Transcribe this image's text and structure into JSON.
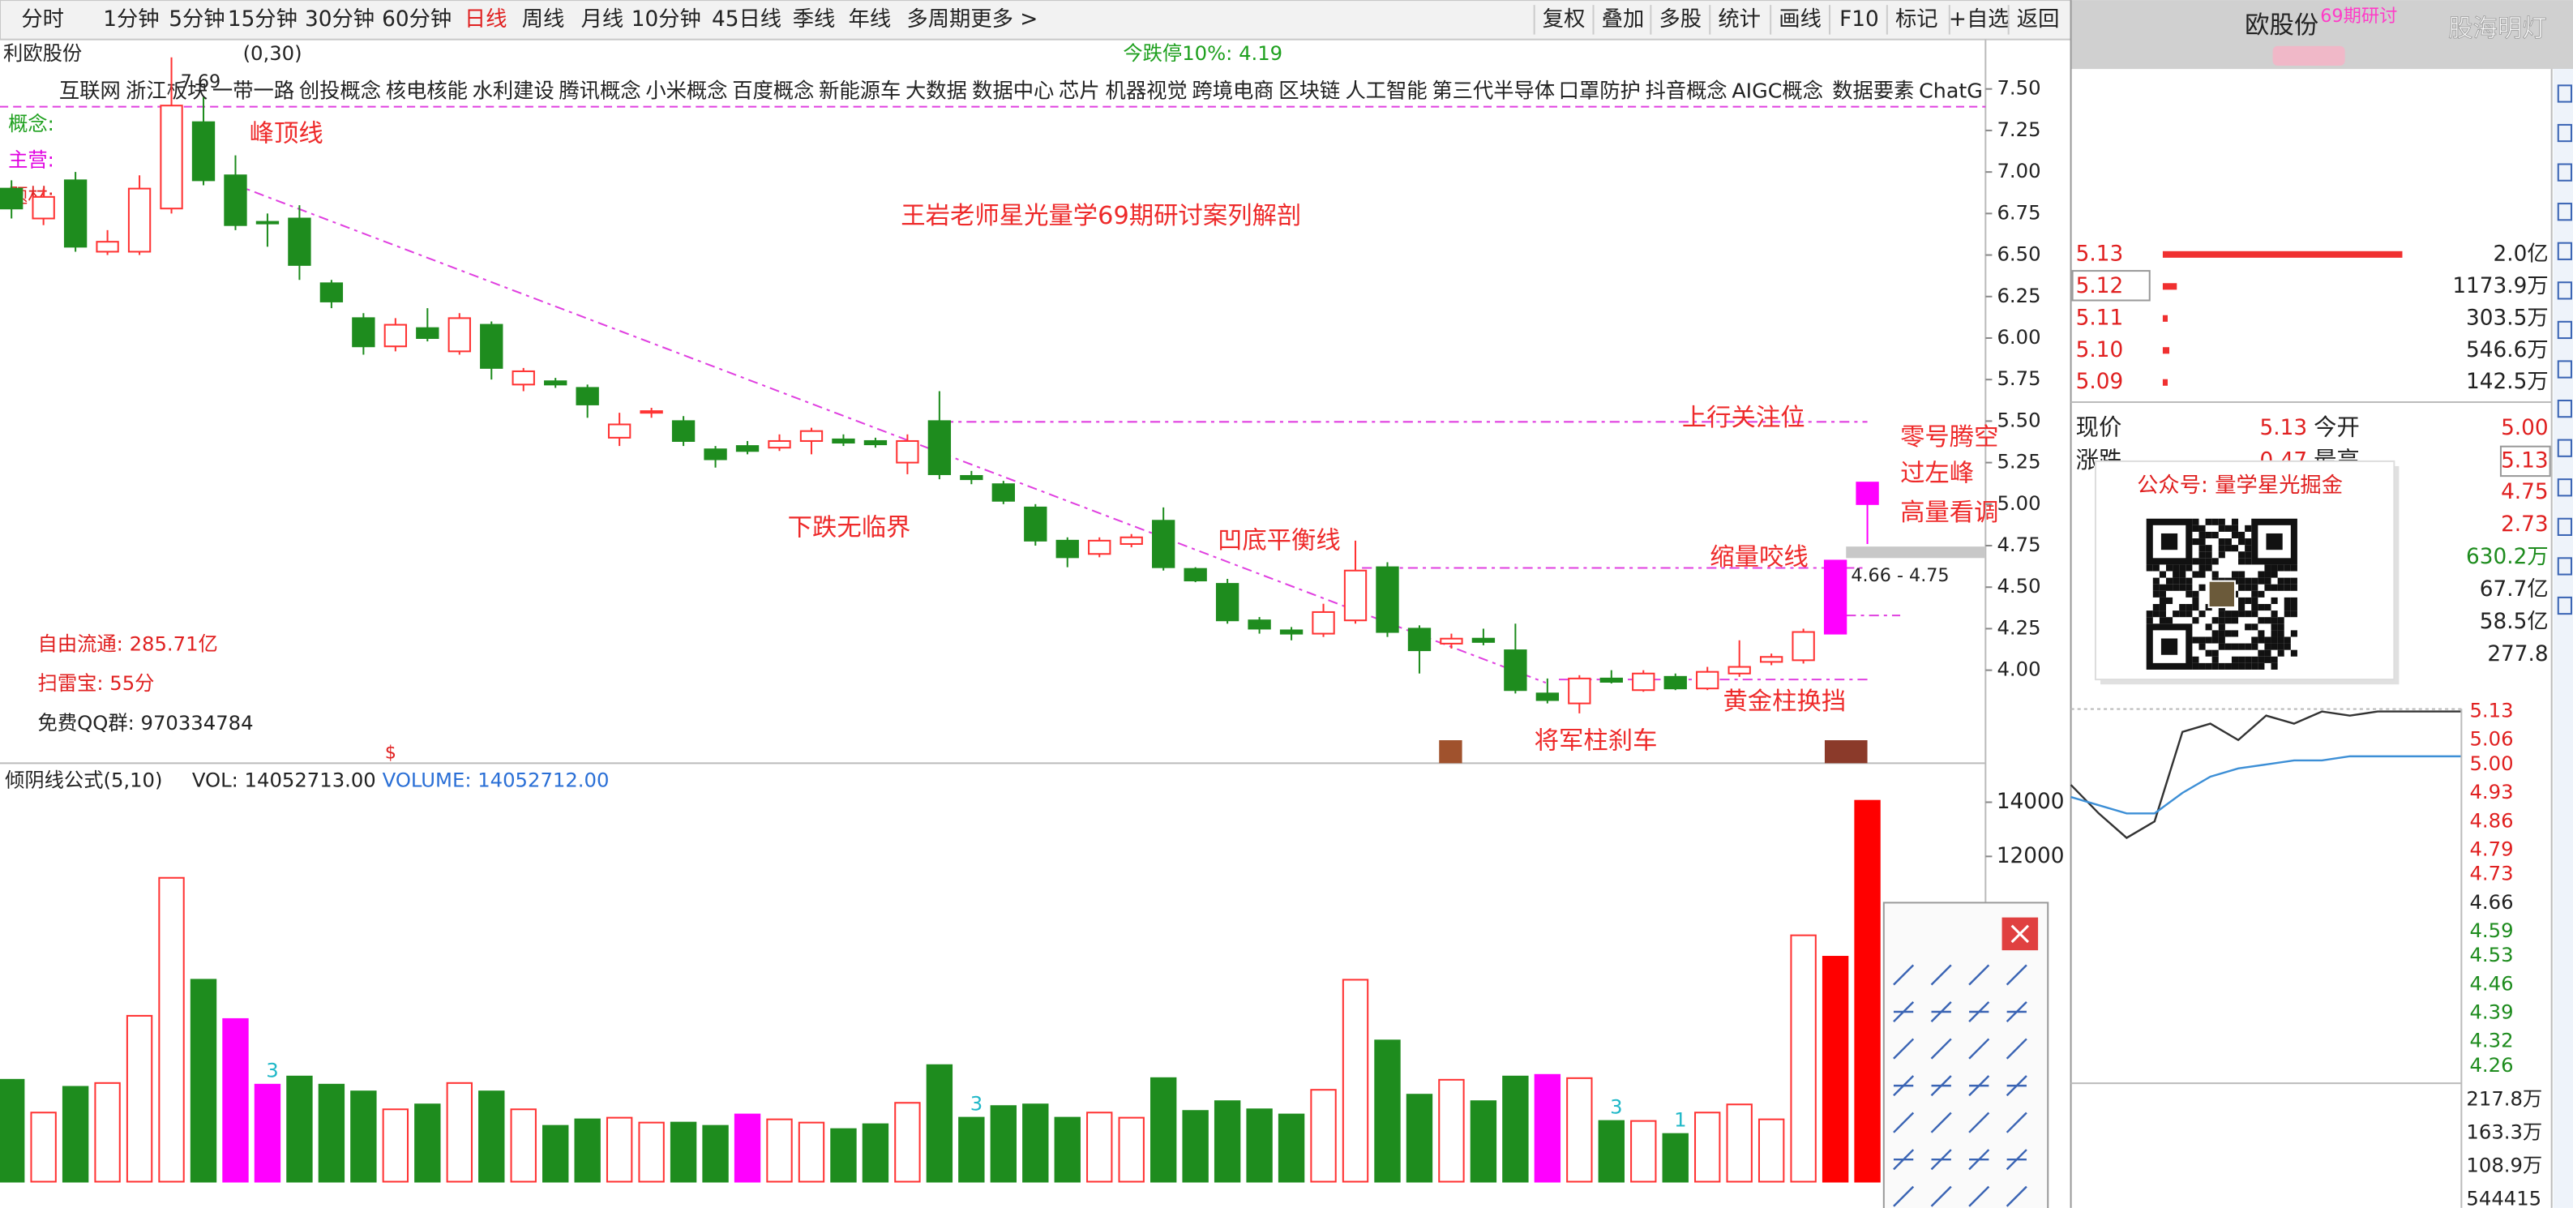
{
  "toolbar": {
    "periods": [
      "分时",
      "1分钟",
      "5分钟",
      "15分钟",
      "30分钟",
      "60分钟",
      "日线",
      "周线",
      "月线",
      "10分钟",
      "45日线",
      "季线",
      "年线",
      "多周期",
      "更多 >"
    ],
    "selected_period": 6,
    "tools": [
      "复权",
      "叠加",
      "多股",
      "统计",
      "画线",
      "F10",
      "标记",
      "+自选",
      "返回"
    ]
  },
  "header_right": {
    "title": "欧股份",
    "tag": "69期研讨",
    "watermark": "股海明灯"
  },
  "stock": {
    "name": "利欧股份",
    "params": "(0,30)",
    "limit_note": "今跌停10%: 4.19"
  },
  "concepts": [
    "互联网",
    "浙江板块",
    "一带一路",
    "创投概念",
    "核电核能",
    "水利建设",
    "腾讯概念",
    "小米概念",
    "百度概念",
    "新能源车",
    "大数据",
    "数据中心",
    "芯片",
    "机器视觉",
    "跨境电商",
    "区块链",
    "人工智能",
    "第三代半导体",
    "口罩防护",
    "抖音概念",
    "AIGC概念",
    "数据要素",
    "ChatG"
  ],
  "side_labels": [
    "概念:",
    "主营:",
    "题材:"
  ],
  "info": [
    "自由流通: 285.71亿",
    "扫雷宝: 55分",
    "免费QQ群: 970334784"
  ],
  "annotations": [
    "峰顶线",
    "王岩老师星光量学69期研讨案列解剖",
    "上行关注位",
    "零号腾空",
    "过左峰",
    "高量看调",
    "下跌无临界",
    "凹底平衡线",
    "缩量咬线",
    "黄金柱换挡",
    "将军柱刹车"
  ],
  "price_notes": [
    "7.69",
    "4.66 - 4.75"
  ],
  "volume_header": [
    "倾阴线公式(5,10)",
    "VOL: 14052713.00",
    "VOLUME: 14052712.00"
  ],
  "chart_data": [
    {
      "type": "candlestick",
      "open": [
        6.9,
        6.72,
        6.95,
        6.52,
        6.52,
        6.78,
        7.3,
        6.98,
        6.7,
        6.72,
        6.33,
        6.12,
        5.95,
        6.06,
        5.92,
        6.08,
        5.72,
        5.74,
        5.7,
        5.4,
        5.55,
        5.5,
        5.33,
        5.35,
        5.34,
        5.38,
        5.39,
        5.38,
        5.25,
        5.5,
        5.17,
        5.12,
        4.98,
        4.78,
        4.7,
        4.76,
        4.9,
        4.61,
        4.52,
        4.3,
        4.24,
        4.22,
        4.3,
        4.62,
        4.25,
        4.16,
        4.19,
        4.12,
        3.86,
        3.8,
        3.95,
        3.88,
        3.96,
        3.89,
        3.98,
        4.05,
        4.06,
        4.22,
        5.0
      ],
      "high": [
        6.95,
        6.9,
        7.0,
        6.65,
        6.98,
        7.69,
        7.45,
        7.1,
        6.75,
        6.8,
        6.35,
        6.15,
        6.12,
        6.18,
        6.15,
        6.1,
        5.82,
        5.76,
        5.72,
        5.55,
        5.58,
        5.53,
        5.35,
        5.38,
        5.42,
        5.46,
        5.42,
        5.4,
        5.42,
        5.68,
        5.2,
        5.14,
        5.0,
        4.8,
        4.8,
        4.82,
        4.98,
        4.62,
        4.55,
        4.32,
        4.26,
        4.4,
        4.78,
        4.65,
        4.27,
        4.22,
        4.25,
        4.28,
        3.95,
        3.97,
        4.0,
        4.0,
        3.98,
        4.02,
        4.18,
        4.1,
        4.25,
        4.66,
        5.13
      ],
      "low": [
        6.72,
        6.68,
        6.52,
        6.5,
        6.5,
        6.75,
        6.92,
        6.65,
        6.55,
        6.35,
        6.18,
        5.9,
        5.92,
        5.98,
        5.9,
        5.75,
        5.68,
        5.7,
        5.52,
        5.35,
        5.52,
        5.35,
        5.22,
        5.3,
        5.32,
        5.3,
        5.35,
        5.34,
        5.18,
        5.15,
        5.12,
        5.0,
        4.75,
        4.62,
        4.68,
        4.74,
        4.6,
        4.53,
        4.28,
        4.22,
        4.18,
        4.2,
        4.28,
        4.2,
        3.98,
        4.13,
        4.15,
        3.86,
        3.8,
        3.74,
        3.92,
        3.87,
        3.88,
        3.88,
        3.96,
        4.03,
        4.04,
        4.22,
        4.76
      ],
      "close": [
        6.78,
        6.85,
        6.55,
        6.58,
        6.9,
        7.4,
        6.95,
        6.68,
        6.69,
        6.44,
        6.22,
        5.95,
        6.08,
        6.0,
        6.12,
        5.82,
        5.8,
        5.72,
        5.6,
        5.48,
        5.56,
        5.38,
        5.27,
        5.32,
        5.38,
        5.44,
        5.37,
        5.36,
        5.38,
        5.18,
        5.15,
        5.02,
        4.78,
        4.68,
        4.78,
        4.8,
        4.62,
        4.54,
        4.3,
        4.25,
        4.22,
        4.35,
        4.6,
        4.23,
        4.12,
        4.19,
        4.17,
        3.88,
        3.82,
        3.95,
        3.93,
        3.98,
        3.89,
        3.99,
        4.02,
        4.08,
        4.23,
        4.66,
        5.13
      ],
      "colors": [
        "#1e8c1e",
        "#ff3232",
        "#1e8c1e",
        "#ff3232",
        "#ff3232",
        "#ff3232",
        "#1e8c1e",
        "#1e8c1e",
        "#1e8c1e",
        "#1e8c1e",
        "#1e8c1e",
        "#1e8c1e",
        "#ff3232",
        "#1e8c1e",
        "#ff3232",
        "#1e8c1e",
        "#ff3232",
        "#1e8c1e",
        "#1e8c1e",
        "#ff3232",
        "#ff3232",
        "#1e8c1e",
        "#1e8c1e",
        "#1e8c1e",
        "#ff3232",
        "#ff3232",
        "#1e8c1e",
        "#1e8c1e",
        "#ff3232",
        "#1e8c1e",
        "#1e8c1e",
        "#1e8c1e",
        "#1e8c1e",
        "#1e8c1e",
        "#ff3232",
        "#ff3232",
        "#1e8c1e",
        "#1e8c1e",
        "#1e8c1e",
        "#1e8c1e",
        "#1e8c1e",
        "#ff3232",
        "#ff3232",
        "#1e8c1e",
        "#1e8c1e",
        "#ff3232",
        "#1e8c1e",
        "#1e8c1e",
        "#1e8c1e",
        "#ff3232",
        "#1e8c1e",
        "#ff3232",
        "#1e8c1e",
        "#ff3232",
        "#ff3232",
        "#ff3232",
        "#ff3232",
        "#ff00ff",
        "#ff00ff"
      ],
      "hollow_color": "#ff3232",
      "ylim": [
        3.44,
        7.64
      ],
      "yticks": [
        {
          "value": 7.5,
          "label": "7.50"
        },
        7.25,
        {
          "value": 7,
          "label": "7.00"
        },
        6.75,
        {
          "value": 6.5,
          "label": "6.50"
        },
        6.25,
        {
          "value": 6,
          "label": "6.00"
        },
        5.75,
        {
          "value": 5.5,
          "label": "5.50"
        },
        5.25,
        {
          "value": 5,
          "label": "5.00"
        },
        4.75,
        {
          "value": 4.5,
          "label": "4.50"
        },
        4.25,
        {
          "value": 4,
          "label": "4.00"
        }
      ]
    },
    {
      "type": "bar",
      "values": [
        3760,
        2550,
        3500,
        3640,
        6120,
        11210,
        7450,
        6000,
        3580,
        3880,
        3580,
        3330,
        2670,
        2850,
        3640,
        3330,
        2670,
        2060,
        2300,
        2360,
        2180,
        2180,
        2060,
        2480,
        2300,
        2180,
        1940,
        2120,
        2910,
        4300,
        2360,
        2790,
        2850,
        2360,
        2550,
        2360,
        3820,
        2610,
        2970,
        2670,
        2480,
        3390,
        7450,
        5210,
        3210,
        3760,
        2970,
        3880,
        3940,
        3820,
        2240,
        2240,
        1760,
        2550,
        2850,
        2300,
        9090,
        8300,
        14053
      ],
      "colors": [
        "#1e8c1e",
        "#ff3232",
        "#1e8c1e",
        "#ff3232",
        "#ff3232",
        "#ff3232",
        "#1e8c1e",
        "#ff00ff",
        "#ff00ff",
        "#1e8c1e",
        "#1e8c1e",
        "#1e8c1e",
        "#ff3232",
        "#1e8c1e",
        "#ff3232",
        "#1e8c1e",
        "#ff3232",
        "#1e8c1e",
        "#1e8c1e",
        "#ff3232",
        "#ff3232",
        "#1e8c1e",
        "#1e8c1e",
        "#ff00ff",
        "#ff3232",
        "#ff3232",
        "#1e8c1e",
        "#1e8c1e",
        "#ff3232",
        "#1e8c1e",
        "#1e8c1e",
        "#1e8c1e",
        "#1e8c1e",
        "#1e8c1e",
        "#ff3232",
        "#ff3232",
        "#1e8c1e",
        "#1e8c1e",
        "#1e8c1e",
        "#1e8c1e",
        "#1e8c1e",
        "#ff3232",
        "#ff3232",
        "#1e8c1e",
        "#1e8c1e",
        "#ff3232",
        "#1e8c1e",
        "#1e8c1e",
        "#ff00ff",
        "#ff3232",
        "#1e8c1e",
        "#ff3232",
        "#1e8c1e",
        "#ff3232",
        "#ff3232",
        "#ff3232",
        "#ff3232",
        "#ff0000",
        "#ff0000"
      ],
      "hollow_color": "#ff3232",
      "signals": [
        {
          "bar": 8,
          "label": "3"
        },
        {
          "bar": 30,
          "label": "3"
        },
        {
          "bar": 50,
          "label": "3"
        },
        {
          "bar": 52,
          "label": "1"
        }
      ],
      "ylim": [
        0,
        15500
      ],
      "yticks": [
        14000,
        12000
      ]
    },
    {
      "type": "line",
      "series": [
        {
          "name": "价格",
          "color": "#333333",
          "values": [
            4.95,
            4.88,
            4.82,
            4.86,
            5.08,
            5.1,
            5.06,
            5.12,
            5.1,
            5.13,
            5.12,
            5.13,
            5.13,
            5.13,
            5.13
          ]
        },
        {
          "name": "均价",
          "color": "#3d8fd6",
          "values": [
            4.92,
            4.9,
            4.88,
            4.88,
            4.93,
            4.97,
            4.99,
            5.0,
            5.01,
            5.01,
            5.02,
            5.02,
            5.02,
            5.02,
            5.02
          ]
        }
      ],
      "ylim": [
        4.25,
        5.14
      ],
      "yticks": [
        5.13,
        5.06,
        {
          "value": 5,
          "label": "5.00"
        },
        4.93,
        4.86,
        4.79,
        4.73,
        4.66,
        4.59,
        4.53,
        4.46,
        4.39,
        4.32,
        4.26
      ],
      "ytick_colors": [
        "#e02020",
        "#e02020",
        "#e02020",
        "#e02020",
        "#e02020",
        "#e02020",
        "#e02020",
        "#222222",
        "#1e8c1e",
        "#1e8c1e",
        "#1e8c1e",
        "#1e8c1e",
        "#1e8c1e",
        "#1e8c1e"
      ],
      "y2lim": [
        0,
        2450000
      ],
      "y2ticks": [
        {
          "value": 2178000,
          "label": "217.8万"
        },
        {
          "value": 1633000,
          "label": "163.3万"
        },
        {
          "value": 1089000,
          "label": "108.9万"
        },
        544415
      ]
    }
  ],
  "order_book": {
    "prices": [
      "5.13",
      "5.12",
      "5.11",
      "5.10",
      "5.09"
    ],
    "volumes": [
      20000,
      1173.9,
      303.5,
      546.6,
      142.5
    ],
    "volume_labels": [
      "2.0亿",
      "1173.9万",
      "303.5万",
      "546.6万",
      "142.5万"
    ]
  },
  "quote": [
    {
      "label": "现价",
      "value": "5.13",
      "label2": "今开",
      "value2": "5.00"
    },
    {
      "label": "涨跌",
      "value": "0.47",
      "label2": "最高",
      "value2": "5.13"
    }
  ],
  "stats": [
    "4.75",
    "2.73",
    "630.2万",
    "67.7亿",
    "58.5亿",
    "277.8"
  ],
  "stat_colors": [
    "#e02020",
    "#e02020",
    "#1e8c1e",
    "#222222",
    "#222222",
    "#222222"
  ],
  "qr_popup": {
    "title": "公众号: 量学星光掘金"
  }
}
